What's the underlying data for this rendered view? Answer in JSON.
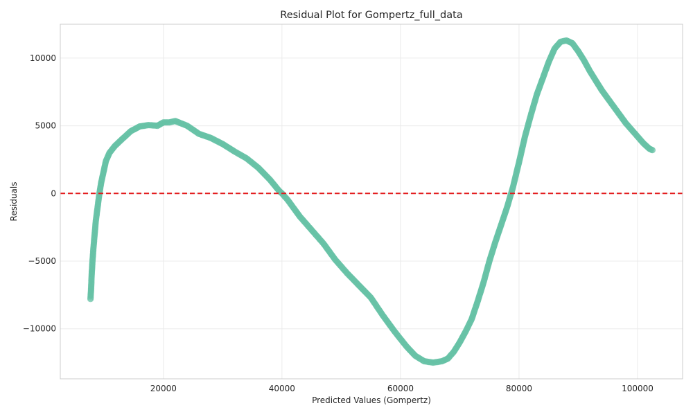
{
  "chart_data": {
    "type": "scatter",
    "title": "Residual Plot for Gompertz_full_data",
    "xlabel": "Predicted Values (Gompertz)",
    "ylabel": "Residuals",
    "xlim": [
      2600,
      107600
    ],
    "ylim": [
      -13700,
      12500
    ],
    "xticks": [
      20000,
      40000,
      60000,
      80000,
      100000
    ],
    "yticks": [
      -10000,
      -5000,
      0,
      5000,
      10000
    ],
    "xtick_labels": [
      "20000",
      "40000",
      "60000",
      "80000",
      "100000"
    ],
    "ytick_labels": [
      "−10000",
      "−5000",
      "0",
      "5000",
      "10000"
    ],
    "grid": true,
    "reference_line": {
      "y": 0,
      "style": "dashed",
      "color": "#e31a1c"
    },
    "marker_color": "#66c2a5",
    "curve_points": [
      [
        7700,
        -7800
      ],
      [
        7800,
        -7000
      ],
      [
        7900,
        -6000
      ],
      [
        8000,
        -5200
      ],
      [
        8200,
        -4000
      ],
      [
        8400,
        -3000
      ],
      [
        8600,
        -2000
      ],
      [
        8900,
        -1000
      ],
      [
        9200,
        0
      ],
      [
        9500,
        800
      ],
      [
        9900,
        1600
      ],
      [
        10300,
        2400
      ],
      [
        10900,
        3000
      ],
      [
        11800,
        3500
      ],
      [
        13000,
        4000
      ],
      [
        14500,
        4600
      ],
      [
        16000,
        4950
      ],
      [
        17500,
        5050
      ],
      [
        19000,
        5000
      ],
      [
        20000,
        5250
      ],
      [
        21000,
        5250
      ],
      [
        22000,
        5350
      ],
      [
        24000,
        5000
      ],
      [
        26000,
        4400
      ],
      [
        28000,
        4100
      ],
      [
        30000,
        3650
      ],
      [
        32000,
        3100
      ],
      [
        34000,
        2600
      ],
      [
        36000,
        1900
      ],
      [
        38000,
        1000
      ],
      [
        39500,
        200
      ],
      [
        40000,
        0
      ],
      [
        41000,
        -500
      ],
      [
        43000,
        -1700
      ],
      [
        45000,
        -2700
      ],
      [
        47000,
        -3700
      ],
      [
        49000,
        -4900
      ],
      [
        51000,
        -5900
      ],
      [
        53000,
        -6800
      ],
      [
        55000,
        -7700
      ],
      [
        57000,
        -9000
      ],
      [
        59000,
        -10200
      ],
      [
        61000,
        -11300
      ],
      [
        62500,
        -12000
      ],
      [
        64000,
        -12400
      ],
      [
        65500,
        -12500
      ],
      [
        67000,
        -12400
      ],
      [
        68000,
        -12200
      ],
      [
        69000,
        -11700
      ],
      [
        70000,
        -11000
      ],
      [
        71000,
        -10200
      ],
      [
        72000,
        -9300
      ],
      [
        73000,
        -8000
      ],
      [
        74000,
        -6600
      ],
      [
        75000,
        -5000
      ],
      [
        76000,
        -3600
      ],
      [
        77000,
        -2300
      ],
      [
        78000,
        -1000
      ],
      [
        79000,
        500
      ],
      [
        80000,
        2300
      ],
      [
        81000,
        4200
      ],
      [
        82000,
        5800
      ],
      [
        83000,
        7300
      ],
      [
        84000,
        8500
      ],
      [
        85000,
        9700
      ],
      [
        86000,
        10700
      ],
      [
        87000,
        11200
      ],
      [
        88000,
        11300
      ],
      [
        89000,
        11100
      ],
      [
        90000,
        10500
      ],
      [
        91000,
        9800
      ],
      [
        92000,
        9000
      ],
      [
        93000,
        8300
      ],
      [
        94000,
        7600
      ],
      [
        95000,
        7000
      ],
      [
        96000,
        6400
      ],
      [
        97000,
        5800
      ],
      [
        98000,
        5200
      ],
      [
        99000,
        4700
      ],
      [
        100000,
        4200
      ],
      [
        101000,
        3700
      ],
      [
        102000,
        3300
      ],
      [
        102500,
        3200
      ]
    ]
  }
}
